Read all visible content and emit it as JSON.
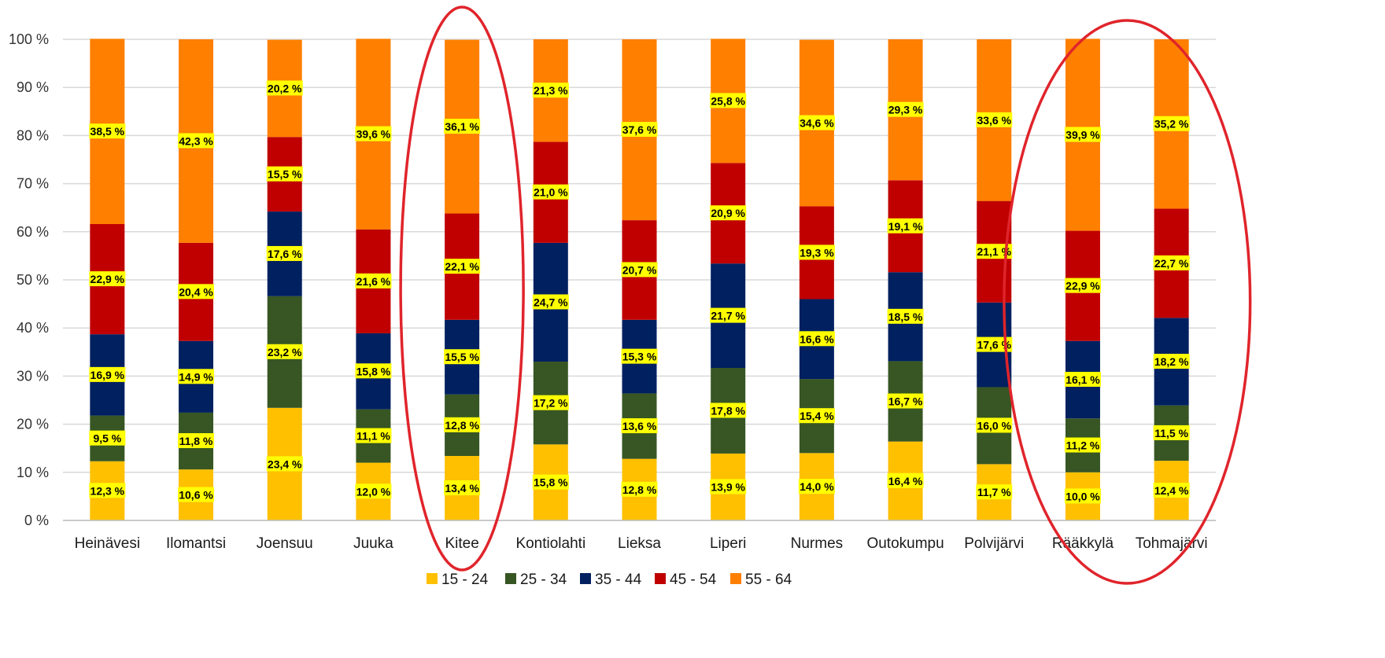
{
  "chart_data": {
    "type": "bar",
    "stacked": "percent",
    "title": "",
    "xlabel": "",
    "ylabel": "",
    "ylim": [
      0,
      100
    ],
    "yticks": [
      "0 %",
      "10 %",
      "20 %",
      "30 %",
      "40 %",
      "50 %",
      "60 %",
      "70 %",
      "80 %",
      "90 %",
      "100 %"
    ],
    "grid": true,
    "legend_position": "bottom",
    "categories": [
      "Heinävesi",
      "Ilomantsi",
      "Joensuu",
      "Juuka",
      "Kitee",
      "Kontiolahti",
      "Lieksa",
      "Liperi",
      "Nurmes",
      "Outokumpu",
      "Polvijärvi",
      "Rääkkylä",
      "Tohmajärvi"
    ],
    "series": [
      {
        "name": "15 - 24",
        "color": "#FFC000",
        "values": [
          12.3,
          10.6,
          23.4,
          12.0,
          13.4,
          15.8,
          12.8,
          13.9,
          14.0,
          16.4,
          11.7,
          10.0,
          12.4
        ],
        "labels": [
          "12,3 %",
          "10,6 %",
          "23,4 %",
          "12,0 %",
          "13,4 %",
          "15,8 %",
          "12,8 %",
          "13,9 %",
          "14,0 %",
          "16,4 %",
          "11,7 %",
          "10,0 %",
          "12,4 %"
        ]
      },
      {
        "name": "25 - 34",
        "color": "#375623",
        "values": [
          9.5,
          11.8,
          23.2,
          11.1,
          12.8,
          17.2,
          13.6,
          17.8,
          15.4,
          16.7,
          16.0,
          11.2,
          11.5
        ],
        "labels": [
          "9,5 %",
          "11,8 %",
          "23,2 %",
          "11,1 %",
          "12,8 %",
          "17,2 %",
          "13,6 %",
          "17,8 %",
          "15,4 %",
          "16,7 %",
          "16,0 %",
          "11,2 %",
          "11,5 %"
        ]
      },
      {
        "name": "35 - 44",
        "color": "#002060",
        "values": [
          16.9,
          14.9,
          17.6,
          15.8,
          15.5,
          24.7,
          15.3,
          21.7,
          16.6,
          18.5,
          17.6,
          16.1,
          18.2
        ],
        "labels": [
          "16,9 %",
          "14,9 %",
          "17,6 %",
          "15,8 %",
          "15,5 %",
          "24,7 %",
          "15,3 %",
          "21,7 %",
          "16,6 %",
          "18,5 %",
          "17,6 %",
          "16,1 %",
          "18,2 %"
        ]
      },
      {
        "name": "45 - 54",
        "color": "#C00000",
        "values": [
          22.9,
          20.4,
          15.5,
          21.6,
          22.1,
          21.0,
          20.7,
          20.9,
          19.3,
          19.1,
          21.1,
          22.9,
          22.7
        ],
        "labels": [
          "22,9 %",
          "20,4 %",
          "15,5 %",
          "21,6 %",
          "22,1 %",
          "21,0 %",
          "20,7 %",
          "20,9 %",
          "19,3 %",
          "19,1 %",
          "21,1 %",
          "22,9 %",
          "22,7 %"
        ]
      },
      {
        "name": "55 - 64",
        "color": "#FF7F00",
        "values": [
          38.5,
          42.3,
          20.2,
          39.6,
          36.1,
          21.3,
          37.6,
          25.8,
          34.6,
          29.3,
          33.6,
          39.9,
          35.2
        ],
        "labels": [
          "38,5 %",
          "42,3 %",
          "20,2 %",
          "39,6 %",
          "36,1 %",
          "21,3 %",
          "37,6 %",
          "25,8 %",
          "34,6 %",
          "29,3 %",
          "33,6 %",
          "39,9 %",
          "35,2 %"
        ]
      }
    ],
    "label_highlight_color": "#FFFF00",
    "annotations": [
      {
        "type": "ellipse",
        "color": "#E0242B",
        "around": [
          "Kitee"
        ]
      },
      {
        "type": "ellipse",
        "color": "#E0242B",
        "around": [
          "Rääkkylä",
          "Tohmajärvi"
        ]
      }
    ]
  }
}
